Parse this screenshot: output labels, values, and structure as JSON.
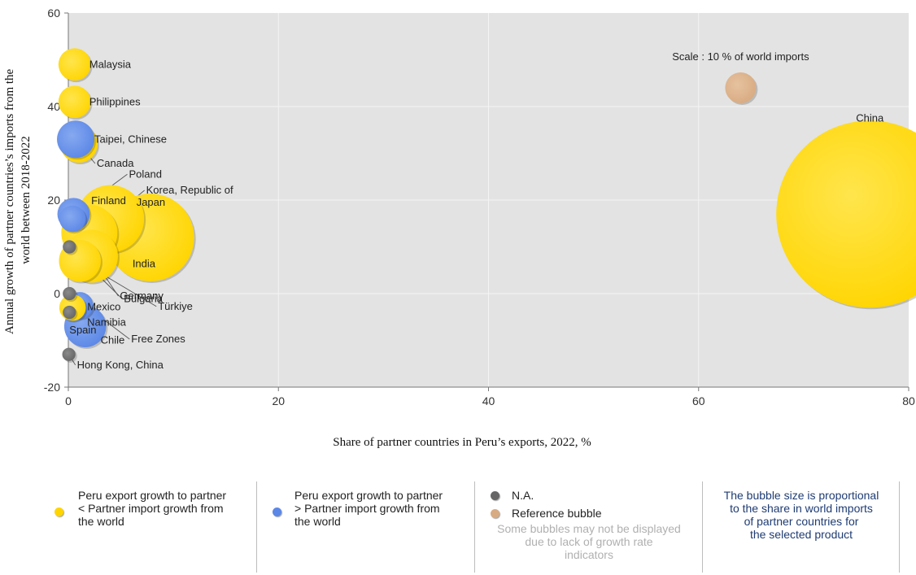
{
  "chart_data": {
    "type": "scatter",
    "subtype": "bubble",
    "xlabel": "Share of partner countries in Peru’s exports, 2022,  %",
    "ylabel_lines": [
      "Annual growth of partner countries’s imports from the",
      "world between 2018-2022"
    ],
    "xlim": [
      0,
      80
    ],
    "ylim": [
      -20,
      60
    ],
    "x_ticks": [
      "0",
      "20",
      "40",
      "60",
      "80"
    ],
    "y_ticks": [
      "60",
      "40",
      "20",
      "0",
      "-20"
    ],
    "grid": true,
    "colors": {
      "yellow": "#ffd500",
      "blue": "#5b87e6",
      "gray": "#666666",
      "reference": "#d8ab82",
      "plot_bg": "#e3e3e3"
    },
    "points": [
      {
        "name": "China",
        "x": 76.3,
        "y": 17,
        "size": 100,
        "color": "yellow"
      },
      {
        "name": "Korea, Republic of",
        "x": 4,
        "y": 16,
        "size": 13,
        "color": "yellow"
      },
      {
        "name": "Japan",
        "x": 7.8,
        "y": 12,
        "size": 22,
        "color": "yellow"
      },
      {
        "name": "India",
        "x": 2,
        "y": 13,
        "size": 9,
        "color": "yellow"
      },
      {
        "name": "Germany",
        "x": 2.2,
        "y": 8,
        "size": 8,
        "color": "yellow"
      },
      {
        "name": "Türkiye",
        "x": 1.1,
        "y": 7,
        "size": 5,
        "color": "yellow"
      },
      {
        "name": "Malaysia",
        "x": 0.6,
        "y": 49,
        "size": 3,
        "color": "yellow"
      },
      {
        "name": "Philippines",
        "x": 0.6,
        "y": 41,
        "size": 3,
        "color": "yellow"
      },
      {
        "name": "Canada",
        "x": 1,
        "y": 32,
        "size": 4,
        "color": "yellow"
      },
      {
        "name": "Taipei, Chinese",
        "x": 0.7,
        "y": 33,
        "size": 4,
        "color": "blue"
      },
      {
        "name": "Poland",
        "x": 0.5,
        "y": 17,
        "size": 3,
        "color": "blue"
      },
      {
        "name": "Finland",
        "x": 0.4,
        "y": 16,
        "size": 2,
        "color": "blue"
      },
      {
        "name": "Bulgaria",
        "x": 0.1,
        "y": 10,
        "size": 0.5,
        "color": "gray"
      },
      {
        "name": "Mexico",
        "x": 1.1,
        "y": -2.5,
        "size": 2,
        "color": "blue"
      },
      {
        "name": "Namibia",
        "x": 0.4,
        "y": -3,
        "size": 2,
        "color": "yellow"
      },
      {
        "name": "Chile",
        "x": 1.6,
        "y": -7,
        "size": 5,
        "color": "blue"
      },
      {
        "name": "Free Zones",
        "x": 0.1,
        "y": 0,
        "size": 0.5,
        "color": "gray"
      },
      {
        "name": "Spain",
        "x": 0.1,
        "y": -4,
        "size": 0.5,
        "color": "gray"
      },
      {
        "name": "Hong Kong, China",
        "x": 0.05,
        "y": -13,
        "size": 0.5,
        "color": "gray"
      }
    ],
    "reference": {
      "label": "Scale : 10 % of world imports",
      "x": 64,
      "y": 44,
      "size": 10,
      "color": "reference"
    }
  },
  "legend": {
    "yellow_lines": [
      "Peru export growth to partner",
      "< Partner import growth from",
      "the world"
    ],
    "blue_lines": [
      "Peru export growth to partner",
      "> Partner import growth from",
      "the world"
    ],
    "na_label": "N.A.",
    "reference_label": "Reference bubble",
    "note_lines": [
      "Some bubbles may not be displayed",
      "due to lack of growth rate",
      "indicators"
    ],
    "size_lines": [
      "The bubble size is proportional",
      "to the share in world imports",
      "of partner countries for",
      "the selected product"
    ]
  }
}
